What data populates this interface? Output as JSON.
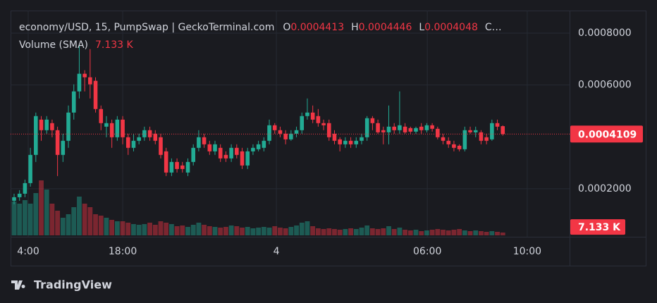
{
  "chart_data": {
    "type": "candlestick",
    "title": "economy/USD, 15, PumpSwap | GeckoTerminal.com",
    "ohlc_labels": [
      "O",
      "H",
      "L",
      "C…"
    ],
    "volume_title": "Volume (SMA)",
    "volume_sma": {
      "value": 7133,
      "label": "7.133 K"
    },
    "logo_text": "TradingView",
    "up_color": "#22ab94",
    "down_color": "#f23645",
    "ylim": [
      1.5e-05,
      0.000887
    ],
    "yticks": [
      {
        "value": 0.0002,
        "label": "0.0002000"
      },
      {
        "value": 0.0006,
        "label": "0.0006000"
      },
      {
        "value": 0.0008,
        "label": "0.0008000"
      }
    ],
    "vlim": [
      0,
      60000
    ],
    "xlim": [
      -0.65,
      102.3
    ],
    "xticks": [
      {
        "value": 2.6,
        "label": "4:00"
      },
      {
        "value": 20,
        "label": "18:00"
      },
      {
        "value": 48.3,
        "label": "4"
      },
      {
        "value": 76.1,
        "label": "06:00"
      },
      {
        "value": 94.5,
        "label": "10:00"
      }
    ],
    "open": [
      0.0001538,
      0.0001674,
      0.000181,
      0.0002218,
      0.0003306,
      0.0004666,
      0.0004258,
      0.000453,
      0.0004258,
      0.0003306,
      0.000385,
      0.0004938,
      0.0005754,
      0.0006434,
      0.0006298,
      0.0006162,
      0.0005074,
      0.0004394,
      0.000453,
      0.0003986,
      0.0004666,
      0.0003986,
      0.0003578,
      0.000385,
      0.0003986,
      0.0004258,
      0.0004122,
      0.0003986,
      0.0003442,
      0.0002626,
      0.0003034,
      0.0002898,
      0.0002626,
      0.0003034,
      0.0003578,
      0.0003986,
      0.0003714,
      0.0003442,
      0.0003578,
      0.0003306,
      0.000317,
      0.0003578,
      0.0003442,
      0.0002898,
      0.0003442,
      0.0003523,
      0.0003578,
      0.000385,
      0.0004448,
      0.0004258,
      0.0004122,
      0.0003904,
      0.0004122,
      0.0004258,
      0.0004802,
      0.0004938,
      0.0004802,
      0.000453,
      0.000453,
      0.0004122,
      0.0003904,
      0.0003714,
      0.000385,
      0.0003714,
      0.000385,
      0.0003986,
      0.000472,
      0.000453,
      0.0004258,
      0.0004176,
      0.0004394,
      0.0004258,
      0.0004394,
      0.0004339,
      0.0004203,
      0.0004394,
      0.0004258,
      0.0004448,
      0.0004312,
      0.0003986,
      0.000385,
      0.0003714,
      0.0003659,
      0.0003523,
      0.0004258,
      0.0004176,
      0.0004176,
      0.0003986,
      0.0003904,
      0.000453,
      0.0004413
    ],
    "high": [
      0.000181,
      0.0001946,
      0.0002354,
      0.0003578,
      0.0004938,
      0.0004802,
      0.0004802,
      0.0004666,
      0.0004394,
      0.0004122,
      0.000521,
      0.0006026,
      0.0007522,
      0.000657,
      0.0007386,
      0.0006298,
      0.000521,
      0.0004802,
      0.0004666,
      0.0004802,
      0.0004802,
      0.0004122,
      0.0004122,
      0.0004122,
      0.0004394,
      0.0004394,
      0.0004258,
      0.0004122,
      0.0003578,
      0.000317,
      0.000317,
      0.0003034,
      0.000317,
      0.0003714,
      0.0004258,
      0.0004122,
      0.000385,
      0.000385,
      0.0003714,
      0.0003442,
      0.0003714,
      0.0003714,
      0.0003578,
      0.0003578,
      0.0003714,
      0.000385,
      0.0003986,
      0.0004666,
      0.000453,
      0.0004394,
      0.0004258,
      0.0004258,
      0.0004394,
      0.0004938,
      0.0005482,
      0.000521,
      0.0005074,
      0.0004666,
      0.0004666,
      0.0004258,
      0.0003986,
      0.0003986,
      0.0003986,
      0.0003986,
      0.0004122,
      0.0004802,
      0.0004802,
      0.0004666,
      0.0004394,
      0.000521,
      0.000453,
      0.0005754,
      0.000453,
      0.0004394,
      0.0004394,
      0.000453,
      0.000453,
      0.000453,
      0.0004394,
      0.0004122,
      0.0003986,
      0.000385,
      0.0003714,
      0.0004394,
      0.0004394,
      0.0004394,
      0.0004258,
      0.0004122,
      0.0004666,
      0.0004666,
      0.0004446
    ],
    "low": [
      0.0001402,
      0.0001538,
      0.0001674,
      0.0002082,
      0.0003034,
      0.000385,
      0.0004122,
      0.0003986,
      0.000249,
      0.0003034,
      0.0003578,
      0.0004666,
      0.0005482,
      0.0005754,
      0.0005482,
      0.0004938,
      0.0004258,
      0.0003986,
      0.0003578,
      0.000385,
      0.0003714,
      0.0003306,
      0.0003442,
      0.0003714,
      0.000385,
      0.000385,
      0.0003714,
      0.000317,
      0.000249,
      0.000249,
      0.0002626,
      0.0002626,
      0.000249,
      0.0002898,
      0.0003442,
      0.0003578,
      0.0003306,
      0.0003306,
      0.0003034,
      0.0003034,
      0.0003034,
      0.000317,
      0.0002762,
      0.0002762,
      0.0003306,
      0.0003442,
      0.0003442,
      0.0003714,
      0.0004122,
      0.0003986,
      0.0003714,
      0.000385,
      0.0003986,
      0.0004122,
      0.0004666,
      0.000453,
      0.0004394,
      0.0004258,
      0.000385,
      0.0003714,
      0.0003442,
      0.0003578,
      0.0003578,
      0.0003578,
      0.0003714,
      0.000385,
      0.0004258,
      0.0004122,
      0.0003714,
      0.0003714,
      0.0004122,
      0.0004122,
      0.0004122,
      0.0004122,
      0.0004122,
      0.0004122,
      0.0004176,
      0.0004203,
      0.0003904,
      0.0003714,
      0.0003578,
      0.0003442,
      0.0003442,
      0.0003442,
      0.0004122,
      0.0003986,
      0.0003714,
      0.0003714,
      0.000385,
      0.0004258,
      0.0004048
    ],
    "close": [
      0.0001674,
      0.000181,
      0.0002218,
      0.0003306,
      0.0004802,
      0.0004258,
      0.0004666,
      0.0004258,
      0.0003306,
      0.000385,
      0.0004938,
      0.0005754,
      0.0006434,
      0.0006298,
      0.0006026,
      0.0005074,
      0.000453,
      0.000453,
      0.0003986,
      0.0004666,
      0.0003986,
      0.0003578,
      0.000385,
      0.0003986,
      0.0004258,
      0.0003986,
      0.000385,
      0.0003306,
      0.0002626,
      0.0003034,
      0.0002762,
      0.0002762,
      0.0003034,
      0.0003578,
      0.0003986,
      0.0003714,
      0.0003442,
      0.0003714,
      0.000317,
      0.000317,
      0.0003578,
      0.0003306,
      0.0002898,
      0.0003442,
      0.0003578,
      0.0003714,
      0.000385,
      0.0004448,
      0.0004258,
      0.0004122,
      0.0003904,
      0.0004122,
      0.0004258,
      0.0004802,
      0.0004938,
      0.0004666,
      0.000453,
      0.0004448,
      0.0003986,
      0.000385,
      0.0003714,
      0.000385,
      0.0003714,
      0.000385,
      0.0003986,
      0.000472,
      0.000453,
      0.0004176,
      0.0004176,
      0.0004394,
      0.0004258,
      0.0004448,
      0.0004176,
      0.0004203,
      0.0004339,
      0.0004258,
      0.0004448,
      0.0004312,
      0.0003986,
      0.000385,
      0.0003714,
      0.0003578,
      0.0003523,
      0.0004258,
      0.0004176,
      0.0004258,
      0.000385,
      0.000385,
      0.000453,
      0.0004394,
      0.0004109
    ],
    "volume": [
      28800,
      27000,
      30000,
      27000,
      36000,
      46800,
      39000,
      27000,
      21000,
      15000,
      18000,
      24000,
      33000,
      27000,
      24000,
      18000,
      16800,
      15000,
      13200,
      12000,
      12000,
      10800,
      9600,
      9000,
      9600,
      10800,
      9000,
      12000,
      10800,
      9600,
      7800,
      8400,
      7200,
      9000,
      10800,
      9000,
      7800,
      7200,
      6600,
      7200,
      8400,
      7800,
      6600,
      7200,
      6000,
      6600,
      7200,
      6600,
      7800,
      6600,
      6000,
      7200,
      8400,
      10800,
      12000,
      7800,
      6000,
      5400,
      6000,
      5400,
      4800,
      5400,
      6000,
      5400,
      6600,
      8400,
      6000,
      5400,
      6000,
      7800,
      5400,
      6600,
      4800,
      4200,
      4800,
      3600,
      4200,
      4800,
      5400,
      4800,
      4200,
      4800,
      5400,
      4200,
      3600,
      4200,
      3600,
      3000,
      3600,
      3000,
      2400
    ]
  }
}
